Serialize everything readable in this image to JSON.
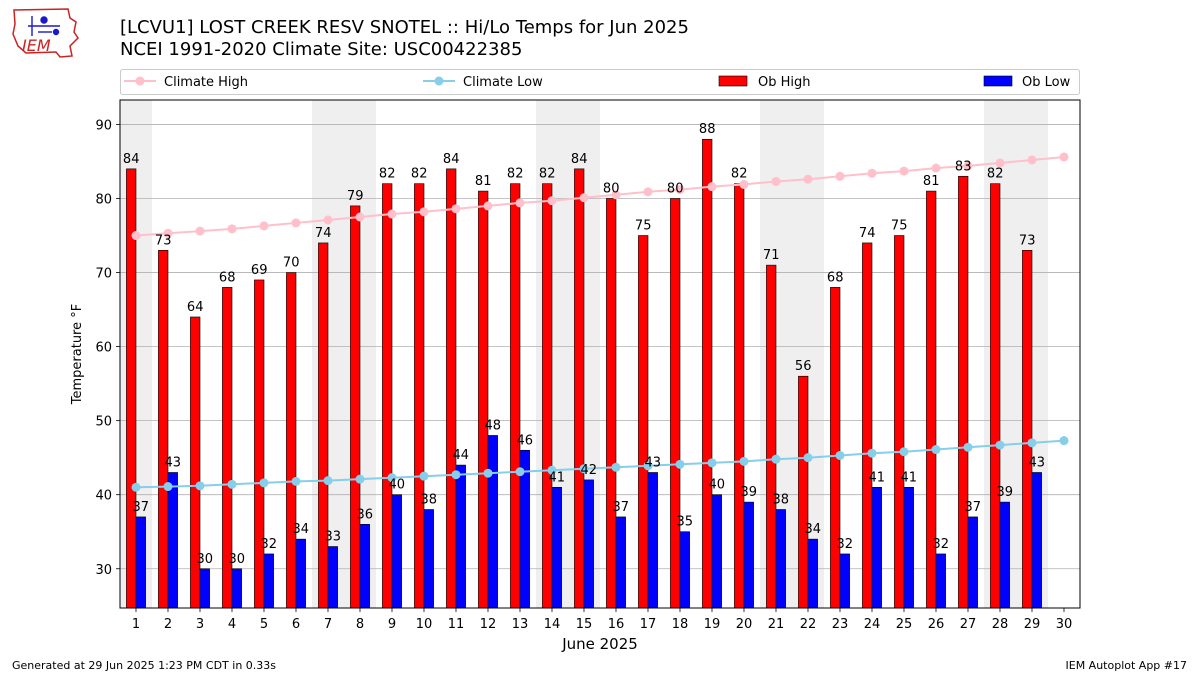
{
  "header": {
    "title": "[LCVU1] LOST CREEK RESV SNOTEL :: Hi/Lo Temps for Jun 2025",
    "subtitle": "NCEI 1991-2020 Climate Site: USC00422385",
    "logo_text": "IEM"
  },
  "footer": {
    "left": "Generated at 29 Jun 2025 1:23 PM CDT in 0.33s",
    "right": "IEM Autoplot App #17"
  },
  "colors": {
    "ob_high": "#ff0000",
    "ob_low": "#0000ff",
    "climate_high": "#ffc0cb",
    "climate_low": "#87ceeb",
    "weekend_shade": "#efefef",
    "grid": "#b0b0b0"
  },
  "chart_data": {
    "type": "bar",
    "xlabel": "June 2025",
    "ylabel": "Temperature °F",
    "ylim": [
      24.7,
      93.3
    ],
    "xlim": [
      0.5,
      30.5
    ],
    "yticks": [
      30,
      40,
      50,
      60,
      70,
      80,
      90
    ],
    "categories": [
      "1",
      "2",
      "3",
      "4",
      "5",
      "6",
      "7",
      "8",
      "9",
      "10",
      "11",
      "12",
      "13",
      "14",
      "15",
      "16",
      "17",
      "18",
      "19",
      "20",
      "21",
      "22",
      "23",
      "24",
      "25",
      "26",
      "27",
      "28",
      "29",
      "30"
    ],
    "grid": "horizontal",
    "legend_position": "top",
    "weekend_days": [
      1,
      7,
      8,
      14,
      15,
      21,
      22,
      28,
      29
    ],
    "series": [
      {
        "name": "Climate High",
        "kind": "line",
        "values": [
          75.0,
          75.3,
          75.6,
          75.9,
          76.3,
          76.7,
          77.1,
          77.5,
          77.9,
          78.2,
          78.6,
          79.0,
          79.4,
          79.7,
          80.1,
          80.5,
          80.9,
          81.2,
          81.6,
          81.9,
          82.3,
          82.6,
          83.0,
          83.4,
          83.7,
          84.1,
          84.4,
          84.8,
          85.2,
          85.6
        ]
      },
      {
        "name": "Climate Low",
        "kind": "line",
        "values": [
          41.0,
          41.1,
          41.2,
          41.4,
          41.6,
          41.8,
          41.9,
          42.1,
          42.3,
          42.5,
          42.7,
          42.9,
          43.1,
          43.3,
          43.5,
          43.7,
          43.9,
          44.1,
          44.3,
          44.5,
          44.8,
          45.0,
          45.3,
          45.6,
          45.8,
          46.1,
          46.4,
          46.7,
          47.0,
          47.3
        ]
      },
      {
        "name": "Ob High",
        "kind": "bar",
        "values": [
          84,
          73,
          64,
          68,
          69,
          70,
          74,
          79,
          82,
          82,
          84,
          81,
          82,
          82,
          84,
          80,
          75,
          80,
          88,
          82,
          71,
          56,
          68,
          74,
          75,
          81,
          83,
          82,
          73,
          null
        ]
      },
      {
        "name": "Ob Low",
        "kind": "bar",
        "values": [
          37,
          43,
          30,
          30,
          32,
          34,
          33,
          36,
          40,
          38,
          44,
          48,
          46,
          41,
          42,
          37,
          43,
          35,
          40,
          39,
          38,
          34,
          32,
          41,
          41,
          32,
          37,
          39,
          43,
          null
        ]
      }
    ]
  }
}
